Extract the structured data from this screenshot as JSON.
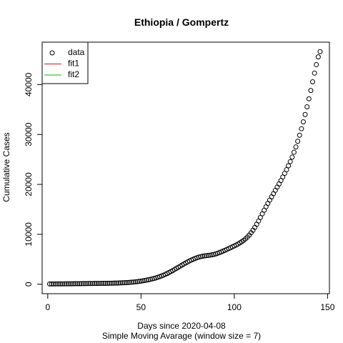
{
  "chart_data": {
    "type": "scatter",
    "title": "Ethiopia / Gompertz",
    "xlabel": "Days since 2020-04-08",
    "xlabel2": "Simple Moving Avarage (window size = 7)",
    "ylabel": "Cumulative Cases",
    "xlim": [
      -3,
      151
    ],
    "ylim": [
      -1900,
      48500
    ],
    "x_ticks": [
      0,
      50,
      100,
      150
    ],
    "y_ticks": [
      0,
      10000,
      20000,
      30000,
      40000
    ],
    "grid": false,
    "legend_position": "top-left",
    "legend": [
      {
        "label": "data",
        "kind": "circle",
        "color": "#000000"
      },
      {
        "label": "fit1",
        "kind": "line",
        "color": "#DF536B"
      },
      {
        "label": "fit2",
        "kind": "line",
        "color": "#61D04F"
      }
    ],
    "series": [
      {
        "name": "data",
        "marker": "open-circle",
        "color": "#000000",
        "x": [
          1,
          2,
          3,
          4,
          5,
          6,
          7,
          8,
          9,
          10,
          11,
          12,
          13,
          14,
          15,
          16,
          17,
          18,
          19,
          20,
          21,
          22,
          23,
          24,
          25,
          26,
          27,
          28,
          29,
          30,
          31,
          32,
          33,
          34,
          35,
          36,
          37,
          38,
          39,
          40,
          41,
          42,
          43,
          44,
          45,
          46,
          47,
          48,
          49,
          50,
          51,
          52,
          53,
          54,
          55,
          56,
          57,
          58,
          59,
          60,
          61,
          62,
          63,
          64,
          65,
          66,
          67,
          68,
          69,
          70,
          71,
          72,
          73,
          74,
          75,
          76,
          77,
          78,
          79,
          80,
          81,
          82,
          83,
          84,
          85,
          86,
          87,
          88,
          89,
          90,
          91,
          92,
          93,
          94,
          95,
          96,
          97,
          98,
          99,
          100,
          101,
          102,
          103,
          104,
          105,
          106,
          107,
          108,
          109,
          110,
          111,
          112,
          113,
          114,
          115,
          116,
          117,
          118,
          119,
          120,
          121,
          122,
          123,
          124,
          125,
          126,
          127,
          128,
          129,
          130,
          131,
          132,
          133,
          134,
          135,
          136,
          137,
          138,
          139,
          140,
          141,
          142,
          143,
          144,
          145,
          146
        ],
        "y": [
          50,
          52,
          55,
          58,
          61,
          65,
          68,
          72,
          76,
          80,
          84,
          88,
          92,
          96,
          100,
          104,
          108,
          113,
          118,
          124,
          130,
          135,
          140,
          145,
          150,
          155,
          160,
          165,
          170,
          175,
          180,
          186,
          193,
          202,
          212,
          223,
          235,
          248,
          262,
          278,
          295,
          315,
          340,
          370,
          400,
          435,
          475,
          520,
          570,
          625,
          680,
          745,
          815,
          890,
          975,
          1065,
          1160,
          1270,
          1390,
          1520,
          1660,
          1810,
          1980,
          2150,
          2340,
          2540,
          2740,
          2960,
          3180,
          3400,
          3620,
          3840,
          4060,
          4270,
          4470,
          4660,
          4840,
          5010,
          5170,
          5310,
          5430,
          5530,
          5610,
          5670,
          5720,
          5770,
          5820,
          5880,
          5960,
          6060,
          6190,
          6330,
          6480,
          6640,
          6800,
          6970,
          7140,
          7310,
          7490,
          7670,
          7860,
          8060,
          8280,
          8520,
          8790,
          9090,
          9440,
          9840,
          10300,
          10810,
          11380,
          12000,
          12660,
          13370,
          14100,
          14820,
          15520,
          16190,
          16850,
          17500,
          18150,
          18800,
          19450,
          20100,
          20780,
          21480,
          22200,
          22950,
          23730,
          24560,
          25460,
          26440,
          27500,
          28630,
          29850,
          31150,
          32530,
          34000,
          35540,
          37150,
          38820,
          40550,
          42300,
          44000,
          45550,
          46600
        ]
      },
      {
        "name": "fit1",
        "color": "#DF536B",
        "x": [],
        "y": []
      },
      {
        "name": "fit2",
        "color": "#61D04F",
        "x": [],
        "y": []
      }
    ]
  }
}
